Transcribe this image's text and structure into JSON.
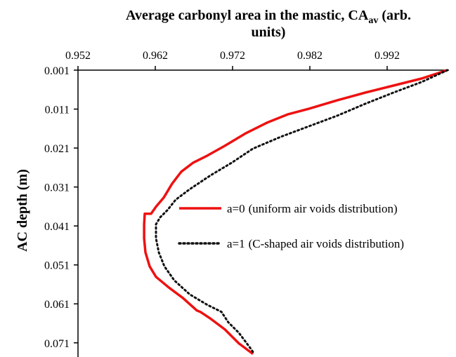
{
  "chart_data": {
    "type": "line",
    "title_parts": [
      "Average carbonyl area in the mastic, CA",
      "av",
      " (arb.",
      "units)"
    ],
    "y_label": "AC depth (m)",
    "xlim": [
      0.952,
      1.0
    ],
    "ylim": [
      0.001,
      0.075
    ],
    "y_inverted": true,
    "x_axis_position": "top",
    "xticks": [
      0.952,
      0.962,
      0.972,
      0.982,
      0.992
    ],
    "yticks": [
      0.001,
      0.011,
      0.021,
      0.031,
      0.041,
      0.051,
      0.061,
      0.071
    ],
    "legend_position": "center-right",
    "series": [
      {
        "name": "a=0",
        "description": "(uniform air voids distribution)",
        "color": "#ee1111",
        "style": "solid",
        "x": [
          0.9998,
          0.99645,
          0.99282,
          0.98918,
          0.98555,
          0.98191,
          0.97918,
          0.97645,
          0.97373,
          0.971,
          0.96873,
          0.96691,
          0.96536,
          0.96418,
          0.96309,
          0.96209,
          0.96145,
          0.96064,
          0.96055,
          0.96055,
          0.96073,
          0.96127,
          0.96209,
          0.96373,
          0.96555,
          0.96736,
          0.96782,
          0.96918,
          0.971,
          0.97282,
          0.97464
        ],
        "y": [
          0.001,
          0.00316,
          0.00496,
          0.00676,
          0.00873,
          0.01089,
          0.01233,
          0.01449,
          0.01719,
          0.02042,
          0.02294,
          0.02474,
          0.02708,
          0.03014,
          0.03373,
          0.03607,
          0.03787,
          0.03787,
          0.04057,
          0.04417,
          0.04777,
          0.05137,
          0.05406,
          0.05676,
          0.05946,
          0.06269,
          0.06305,
          0.06485,
          0.06755,
          0.07114,
          0.07384
        ]
      },
      {
        "name": "a=1",
        "description": "(C-shaped air voids distribution)",
        "color": "#111111",
        "style": "dotted",
        "x": [
          0.9998,
          0.99645,
          0.99282,
          0.98918,
          0.98555,
          0.98191,
          0.97827,
          0.97464,
          0.97191,
          0.96918,
          0.96645,
          0.96464,
          0.96355,
          0.96264,
          0.96209,
          0.96209,
          0.96245,
          0.96318,
          0.96445,
          0.96645,
          0.96873,
          0.97055,
          0.97145,
          0.97282,
          0.97418,
          0.97482
        ],
        "y": [
          0.001,
          0.00406,
          0.00676,
          0.00963,
          0.01269,
          0.01539,
          0.01809,
          0.02114,
          0.02474,
          0.02798,
          0.03158,
          0.03427,
          0.03697,
          0.03877,
          0.04057,
          0.04417,
          0.04777,
          0.05137,
          0.05496,
          0.05856,
          0.06125,
          0.06305,
          0.06575,
          0.06845,
          0.07204,
          0.07384
        ]
      }
    ]
  }
}
